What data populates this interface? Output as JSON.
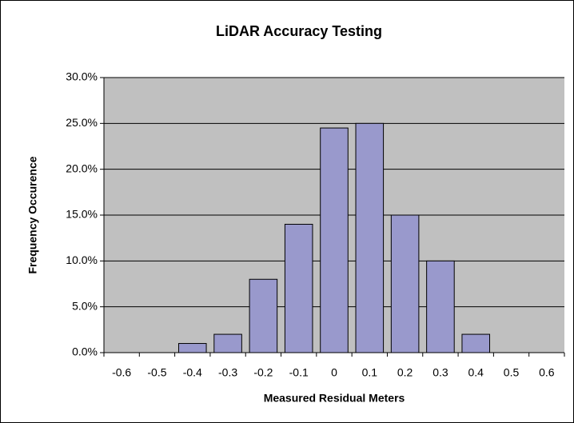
{
  "chart_data": {
    "type": "bar",
    "title": "LiDAR Accuracy Testing",
    "x_label": "Measured Residual Meters",
    "y_label": "Frequency Occurence",
    "categories": [
      "-0.6",
      "-0.5",
      "-0.4",
      "-0.3",
      "-0.2",
      "-0.1",
      "0",
      "0.1",
      "0.2",
      "0.3",
      "0.4",
      "0.5",
      "0.6"
    ],
    "values": [
      0,
      0,
      1,
      2,
      8,
      14,
      24.5,
      25,
      15,
      10,
      2,
      0,
      0
    ],
    "color": "#9999cc",
    "ylim": [
      0,
      30
    ],
    "yticks": [
      {
        "value": 0,
        "label": "0.0%"
      },
      {
        "value": 5,
        "label": "5.0%"
      },
      {
        "value": 10,
        "label": "10.0%"
      },
      {
        "value": 15,
        "label": "15.0%"
      },
      {
        "value": 20,
        "label": "20.0%"
      },
      {
        "value": 25,
        "label": "25.0%"
      },
      {
        "value": 30,
        "label": "30.0%"
      }
    ],
    "grid": true
  }
}
